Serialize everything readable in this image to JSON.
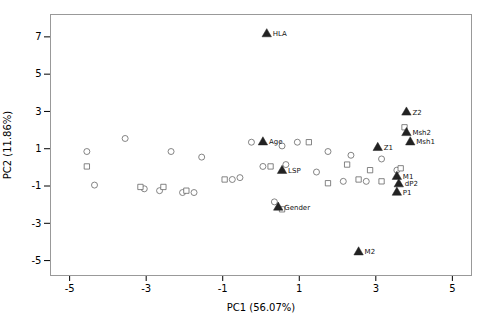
{
  "chart_data": {
    "type": "scatter",
    "xlabel": "PC1 (56.07%)",
    "ylabel": "PC2 (11.86%)",
    "xlim": [
      -5.5,
      5.5
    ],
    "ylim": [
      -5.8,
      8.2
    ],
    "xticks": [
      -5,
      -3,
      -1,
      1,
      3,
      5
    ],
    "yticks": [
      -5,
      -3,
      -1,
      1,
      3,
      5,
      7
    ],
    "series": [
      {
        "marker": "circle",
        "color": "#666666",
        "x": [
          -4.55,
          -4.35,
          -3.55,
          -3.05,
          -2.65,
          -2.35,
          -2.05,
          -1.75,
          -1.55,
          -0.75,
          -0.55,
          -0.25,
          0.05,
          0.35,
          0.55,
          0.65,
          0.95,
          1.45,
          1.75,
          2.15,
          2.35,
          2.75,
          3.15,
          3.55
        ],
        "y": [
          0.85,
          -0.95,
          1.55,
          -1.15,
          -1.25,
          0.85,
          -1.35,
          -1.35,
          0.55,
          -0.65,
          -0.55,
          1.35,
          0.05,
          -1.85,
          1.15,
          0.15,
          1.35,
          -0.25,
          0.85,
          -0.75,
          0.65,
          -0.75,
          0.45,
          -0.15
        ]
      },
      {
        "marker": "square",
        "color": "#666666",
        "x": [
          -4.55,
          -3.15,
          -2.55,
          -1.95,
          -0.95,
          0.25,
          0.55,
          1.25,
          1.75,
          2.25,
          2.55,
          2.85,
          3.15,
          3.65,
          3.75
        ],
        "y": [
          0.05,
          -1.05,
          -1.05,
          -1.25,
          -0.65,
          0.05,
          -2.25,
          1.35,
          -0.85,
          0.15,
          -0.65,
          -0.15,
          -0.75,
          -0.05,
          2.15
        ]
      },
      {
        "marker": "triangle",
        "color": "#222222",
        "x": [
          0.15,
          0.05,
          0.55,
          0.45,
          2.55,
          3.55,
          3.6,
          3.55,
          3.9,
          3.8,
          3.8,
          3.05
        ],
        "y": [
          7.15,
          1.35,
          -0.18,
          -2.15,
          -4.55,
          -0.5,
          -0.9,
          -1.35,
          1.35,
          1.85,
          2.95,
          1.05
        ],
        "labels": [
          "HLA",
          "Age",
          "LSP",
          "Gender",
          "M2",
          "M1",
          "dP2",
          "P1",
          "Msh1",
          "Msh2",
          "Z2",
          "Z1"
        ]
      }
    ]
  }
}
